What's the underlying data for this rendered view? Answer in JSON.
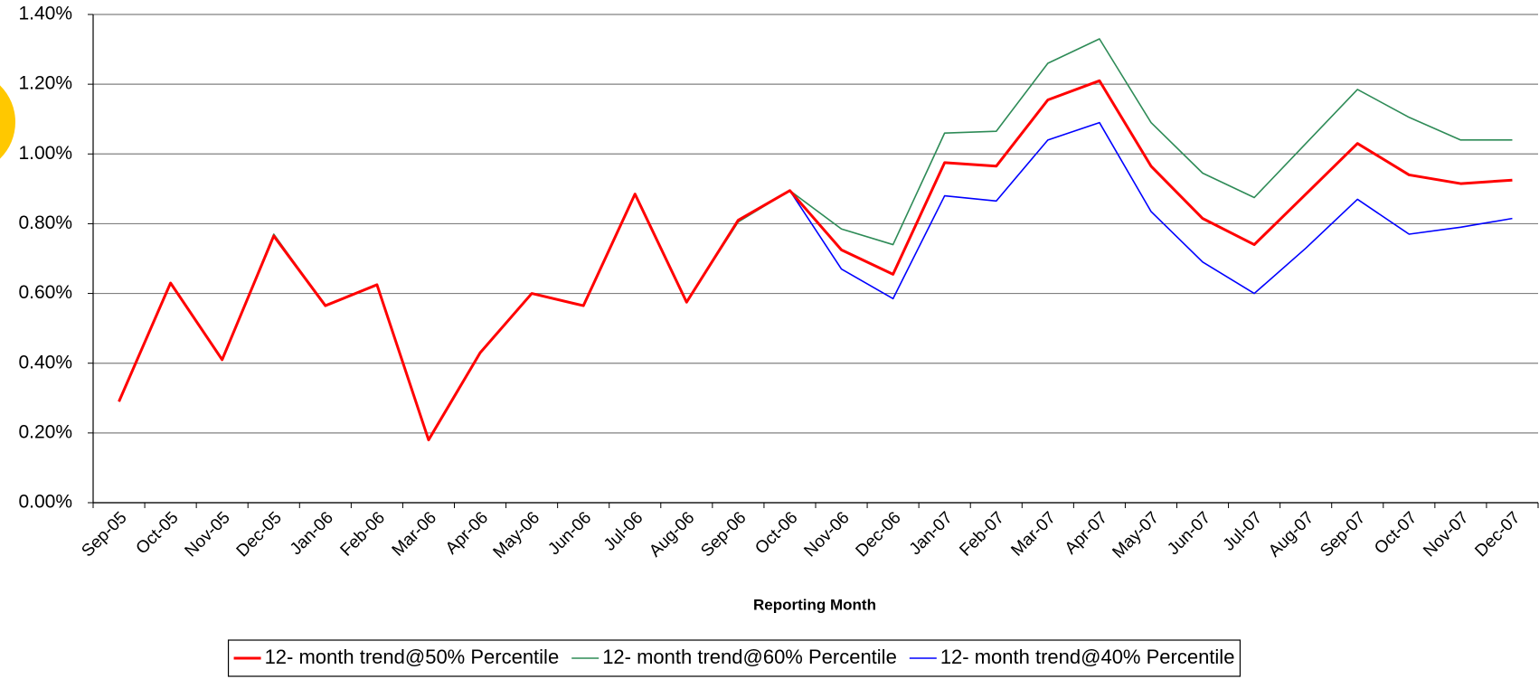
{
  "chart_data": {
    "type": "line",
    "x_label": "Reporting Month",
    "categories": [
      "Sep-05",
      "Oct-05",
      "Nov-05",
      "Dec-05",
      "Jan-06",
      "Feb-06",
      "Mar-06",
      "Apr-06",
      "May-06",
      "Jun-06",
      "Jul-06",
      "Aug-06",
      "Sep-06",
      "Oct-06",
      "Nov-06",
      "Dec-06",
      "Jan-07",
      "Feb-07",
      "Mar-07",
      "Apr-07",
      "May-07",
      "Jun-07",
      "Jul-07",
      "Aug-07",
      "Sep-07",
      "Oct-07",
      "Nov-07",
      "Dec-07"
    ],
    "series": [
      {
        "name": "12- month trend@50% Percentile",
        "color": "#ff0000",
        "width": 3,
        "values": [
          0.29,
          0.63,
          0.41,
          0.765,
          0.565,
          0.625,
          0.18,
          0.43,
          0.6,
          0.565,
          0.885,
          0.575,
          0.81,
          0.895,
          0.725,
          0.655,
          0.975,
          0.965,
          1.155,
          1.21,
          0.965,
          0.815,
          0.74,
          0.885,
          1.03,
          0.94,
          0.915,
          0.925
        ]
      },
      {
        "name": "12- month trend@60% Percentile",
        "color": "#2e8b57",
        "width": 1.6,
        "values": [
          0.29,
          0.63,
          0.41,
          0.77,
          0.565,
          0.625,
          0.18,
          0.43,
          0.6,
          0.565,
          0.885,
          0.575,
          0.805,
          0.895,
          0.785,
          0.74,
          1.06,
          1.065,
          1.26,
          1.33,
          1.09,
          0.945,
          0.875,
          1.03,
          1.185,
          1.105,
          1.04,
          1.04
        ]
      },
      {
        "name": "12- month trend@40% Percentile",
        "color": "#0000ff",
        "width": 1.6,
        "values": [
          0.29,
          0.63,
          0.41,
          0.765,
          0.565,
          0.625,
          0.18,
          0.43,
          0.6,
          0.565,
          0.885,
          0.575,
          0.81,
          0.895,
          0.67,
          0.585,
          0.88,
          0.865,
          1.04,
          1.09,
          0.835,
          0.69,
          0.6,
          0.73,
          0.87,
          0.77,
          0.79,
          0.815
        ]
      }
    ],
    "ylim": [
      0,
      1.4
    ],
    "yticks": [
      {
        "value": 0,
        "label": "0.00%"
      },
      {
        "value": 0.2,
        "label": "0.20%"
      },
      {
        "value": 0.4,
        "label": "0.40%"
      },
      {
        "value": 0.6,
        "label": "0.60%"
      },
      {
        "value": 0.8,
        "label": "0.80%"
      },
      {
        "value": 1.0,
        "label": "1.00%"
      },
      {
        "value": 1.2,
        "label": "1.20%"
      },
      {
        "value": 1.4,
        "label": "1.40%"
      }
    ],
    "grid": true,
    "legend": "bottom"
  }
}
